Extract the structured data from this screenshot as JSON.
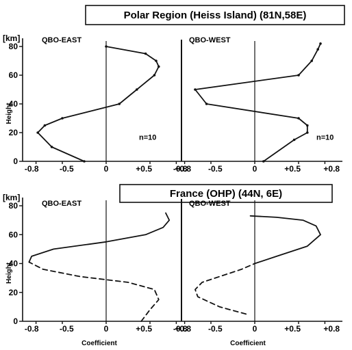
{
  "chart_data": [
    {
      "type": "line",
      "title": "Polar Region (Heiss Island) (81N,58E)",
      "ylabel": "Height",
      "yunit": "[km]",
      "xlabel": "",
      "ylim": [
        0,
        85
      ],
      "yticks": [
        "0",
        "20",
        "40",
        "60",
        "80"
      ],
      "grid": false,
      "panels": [
        {
          "label": "QBO-EAST",
          "note": "n=10",
          "xticks": [
            "-0.8",
            "-0.5",
            "0",
            "+0.5",
            "+0.8"
          ],
          "series": [
            {
              "style": "solid",
              "points": [
                [
                  -0.25,
                  0
                ],
                [
                  -0.62,
                  10
                ],
                [
                  -0.78,
                  20
                ],
                [
                  -0.7,
                  25
                ],
                [
                  -0.5,
                  30
                ],
                [
                  0.15,
                  40
                ],
                [
                  0.35,
                  50
                ],
                [
                  0.55,
                  60
                ],
                [
                  0.6,
                  66
                ],
                [
                  0.57,
                  70
                ],
                [
                  0.45,
                  75
                ],
                [
                  0.0,
                  80
                ]
              ]
            }
          ]
        },
        {
          "label": "QBO-WEST",
          "note": "n=10",
          "xticks": [
            "-0.8",
            "-0.5",
            "0",
            "+0.5",
            "+0.8"
          ],
          "series": [
            {
              "style": "solid",
              "points": [
                [
                  0.1,
                  0
                ],
                [
                  0.45,
                  15
                ],
                [
                  0.6,
                  20
                ],
                [
                  0.6,
                  25
                ],
                [
                  0.5,
                  30
                ],
                [
                  -0.55,
                  40
                ],
                [
                  -0.68,
                  50
                ],
                [
                  0.5,
                  60
                ],
                [
                  0.65,
                  70
                ],
                [
                  0.72,
                  78
                ],
                [
                  0.75,
                  82
                ]
              ]
            }
          ]
        }
      ]
    },
    {
      "type": "line",
      "title": "France (OHP) (44N, 6E)",
      "ylabel": "Height",
      "yunit": "[km]",
      "xlabel": "Coefficient",
      "ylim": [
        0,
        85
      ],
      "yticks": [
        "0",
        "20",
        "40",
        "60",
        "80"
      ],
      "grid": false,
      "panels": [
        {
          "label": "QBO-EAST",
          "xticks": [
            "-0.8",
            "-0.5",
            "0",
            "+0.5",
            "+0.8"
          ],
          "series": [
            {
              "style": "dashed",
              "points": [
                [
                  0.4,
                  0
                ],
                [
                  0.5,
                  8
                ],
                [
                  0.6,
                  15
                ],
                [
                  0.55,
                  22
                ],
                [
                  0.25,
                  27
                ],
                [
                  -0.3,
                  31
                ],
                [
                  -0.72,
                  36
                ],
                [
                  -0.88,
                  41
                ]
              ]
            },
            {
              "style": "solid",
              "points": [
                [
                  -0.88,
                  41
                ],
                [
                  -0.85,
                  45
                ],
                [
                  -0.6,
                  50
                ],
                [
                  0.0,
                  55
                ],
                [
                  0.45,
                  60
                ],
                [
                  0.65,
                  65
                ],
                [
                  0.72,
                  70
                ],
                [
                  0.68,
                  75
                ]
              ]
            }
          ]
        },
        {
          "label": "QBO-WEST",
          "xticks": [
            "-0.8",
            "-0.5",
            "0",
            "+0.5",
            "+0.8"
          ],
          "series": [
            {
              "style": "dashed",
              "points": [
                [
                  -0.1,
                  5
                ],
                [
                  -0.4,
                  10
                ],
                [
                  -0.65,
                  17
                ],
                [
                  -0.68,
                  22
                ],
                [
                  -0.6,
                  27
                ],
                [
                  -0.35,
                  32
                ],
                [
                  -0.15,
                  36
                ],
                [
                  0.0,
                  40
                ]
              ]
            },
            {
              "style": "solid",
              "points": [
                [
                  0.0,
                  40
                ],
                [
                  0.25,
                  45
                ],
                [
                  0.6,
                  52
                ],
                [
                  0.75,
                  60
                ],
                [
                  0.7,
                  66
                ],
                [
                  0.55,
                  70
                ],
                [
                  0.25,
                  72
                ],
                [
                  -0.05,
                  73
                ]
              ]
            }
          ]
        }
      ]
    }
  ]
}
